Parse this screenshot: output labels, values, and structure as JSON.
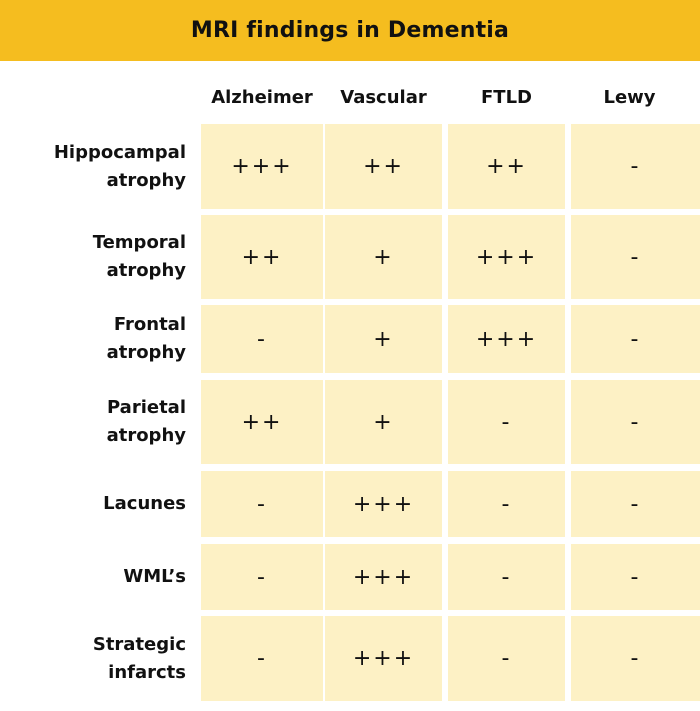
{
  "title": "MRI findings in Dementia",
  "colors": {
    "title_bar": "#f5bd1f",
    "cell_fill": "#fdf1c5"
  },
  "columns": [
    "Alzheimer",
    "Vascular",
    "FTLD",
    "Lewy"
  ],
  "rows": [
    {
      "label": "Hippocampal\natrophy",
      "values": [
        "+++",
        "++",
        "++",
        "-"
      ]
    },
    {
      "label": "Temporal\natrophy",
      "values": [
        "++",
        "+",
        "+++",
        "-"
      ]
    },
    {
      "label": "Frontal\natrophy",
      "values": [
        "-",
        "+",
        "+++",
        "-"
      ]
    },
    {
      "label": "Parietal\natrophy",
      "values": [
        "++",
        "+",
        "-",
        "-"
      ]
    },
    {
      "label": "Lacunes",
      "values": [
        "-",
        "+++",
        "-",
        "-"
      ]
    },
    {
      "label": "WML’s",
      "values": [
        "-",
        "+++",
        "-",
        "-"
      ]
    },
    {
      "label": "Strategic\ninfarcts",
      "values": [
        "-",
        "+++",
        "-",
        "-"
      ]
    }
  ]
}
